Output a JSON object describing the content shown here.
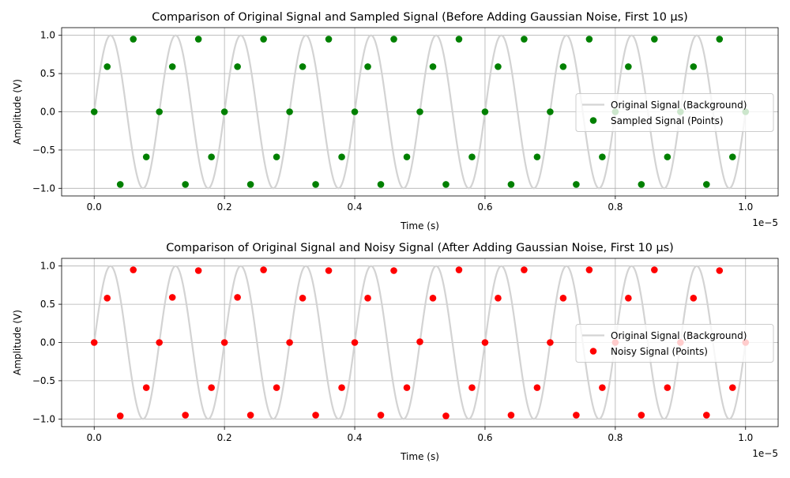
{
  "chart_data": [
    {
      "type": "scatter",
      "title": "Comparison of Original Signal and Sampled Signal (Before Adding Gaussian Noise, First 10 µs)",
      "xlabel": "Time (s)",
      "ylabel": "Amplitude (V)",
      "offset_text": "1e−5",
      "xlim": [
        -5e-07,
        1.05e-05
      ],
      "ylim": [
        -1.1,
        1.1
      ],
      "x_ticks": [
        0,
        2e-06,
        4e-06,
        6e-06,
        8e-06,
        1e-05
      ],
      "x_tick_labels": [
        "0.0",
        "0.2",
        "0.4",
        "0.6",
        "0.8",
        "1.0"
      ],
      "y_ticks": [
        -1.0,
        -0.5,
        0.0,
        0.5,
        1.0
      ],
      "y_tick_labels": [
        "−1.0",
        "−0.5",
        "0.0",
        "0.5",
        "1.0"
      ],
      "grid": true,
      "legend_position": "center-right",
      "background_signal": {
        "name": "Original Signal (Background)",
        "type": "line",
        "color": "#d3d3d3",
        "frequency_hz": 1000000,
        "amplitude": 1.0
      },
      "series": [
        {
          "name": "Sampled Signal (Points)",
          "color": "#008000",
          "x": [
            0,
            2e-07,
            4e-07,
            6e-07,
            8e-07,
            1e-06,
            1.2e-06,
            1.4e-06,
            1.6e-06,
            1.8e-06,
            2e-06,
            2.2e-06,
            2.4e-06,
            2.6e-06,
            2.8e-06,
            3e-06,
            3.2e-06,
            3.4e-06,
            3.6e-06,
            3.8e-06,
            4e-06,
            4.2e-06,
            4.4e-06,
            4.6e-06,
            4.8e-06,
            5e-06,
            5.2e-06,
            5.4e-06,
            5.6e-06,
            5.8e-06,
            6e-06,
            6.2e-06,
            6.4e-06,
            6.6e-06,
            6.8e-06,
            7e-06,
            7.2e-06,
            7.4e-06,
            7.6e-06,
            7.8e-06,
            8e-06,
            8.2e-06,
            8.4e-06,
            8.6e-06,
            8.8e-06,
            9e-06,
            9.2e-06,
            9.4e-06,
            9.6e-06,
            9.8e-06,
            1e-05
          ],
          "y": [
            0.0,
            0.59,
            -0.95,
            0.95,
            -0.59,
            0.0,
            0.59,
            -0.95,
            0.95,
            -0.59,
            0.0,
            0.59,
            -0.95,
            0.95,
            -0.59,
            0.0,
            0.59,
            -0.95,
            0.95,
            -0.59,
            0.0,
            0.59,
            -0.95,
            0.95,
            -0.59,
            0.0,
            0.59,
            -0.95,
            0.95,
            -0.59,
            0.0,
            0.59,
            -0.95,
            0.95,
            -0.59,
            0.0,
            0.59,
            -0.95,
            0.95,
            -0.59,
            0.0,
            0.59,
            -0.95,
            0.95,
            -0.59,
            0.0,
            0.59,
            -0.95,
            0.95,
            -0.59,
            0.0
          ]
        }
      ]
    },
    {
      "type": "scatter",
      "title": "Comparison of Original Signal and Noisy Signal (After Adding Gaussian Noise, First 10 µs)",
      "xlabel": "Time (s)",
      "ylabel": "Amplitude (V)",
      "offset_text": "1e−5",
      "xlim": [
        -5e-07,
        1.05e-05
      ],
      "ylim": [
        -1.1,
        1.1
      ],
      "x_ticks": [
        0,
        2e-06,
        4e-06,
        6e-06,
        8e-06,
        1e-05
      ],
      "x_tick_labels": [
        "0.0",
        "0.2",
        "0.4",
        "0.6",
        "0.8",
        "1.0"
      ],
      "y_ticks": [
        -1.0,
        -0.5,
        0.0,
        0.5,
        1.0
      ],
      "y_tick_labels": [
        "−1.0",
        "−0.5",
        "0.0",
        "0.5",
        "1.0"
      ],
      "grid": true,
      "legend_position": "center-right",
      "background_signal": {
        "name": "Original Signal (Background)",
        "type": "line",
        "color": "#d3d3d3",
        "frequency_hz": 1000000,
        "amplitude": 1.0
      },
      "series": [
        {
          "name": "Noisy Signal (Points)",
          "color": "#ff0000",
          "x": [
            0,
            2e-07,
            4e-07,
            6e-07,
            8e-07,
            1e-06,
            1.2e-06,
            1.4e-06,
            1.6e-06,
            1.8e-06,
            2e-06,
            2.2e-06,
            2.4e-06,
            2.6e-06,
            2.8e-06,
            3e-06,
            3.2e-06,
            3.4e-06,
            3.6e-06,
            3.8e-06,
            4e-06,
            4.2e-06,
            4.4e-06,
            4.6e-06,
            4.8e-06,
            5e-06,
            5.2e-06,
            5.4e-06,
            5.6e-06,
            5.8e-06,
            6e-06,
            6.2e-06,
            6.4e-06,
            6.6e-06,
            6.8e-06,
            7e-06,
            7.2e-06,
            7.4e-06,
            7.6e-06,
            7.8e-06,
            8e-06,
            8.2e-06,
            8.4e-06,
            8.6e-06,
            8.8e-06,
            9e-06,
            9.2e-06,
            9.4e-06,
            9.6e-06,
            9.8e-06,
            1e-05
          ],
          "y": [
            0.0,
            0.58,
            -0.96,
            0.95,
            -0.59,
            0.0,
            0.59,
            -0.95,
            0.94,
            -0.59,
            0.0,
            0.59,
            -0.95,
            0.95,
            -0.59,
            0.0,
            0.58,
            -0.95,
            0.94,
            -0.59,
            0.0,
            0.58,
            -0.95,
            0.94,
            -0.59,
            0.01,
            0.58,
            -0.96,
            0.95,
            -0.59,
            0.0,
            0.58,
            -0.95,
            0.95,
            -0.59,
            0.0,
            0.58,
            -0.95,
            0.95,
            -0.59,
            0.0,
            0.58,
            -0.95,
            0.95,
            -0.59,
            0.0,
            0.58,
            -0.95,
            0.94,
            -0.59,
            0.0
          ]
        }
      ]
    }
  ]
}
